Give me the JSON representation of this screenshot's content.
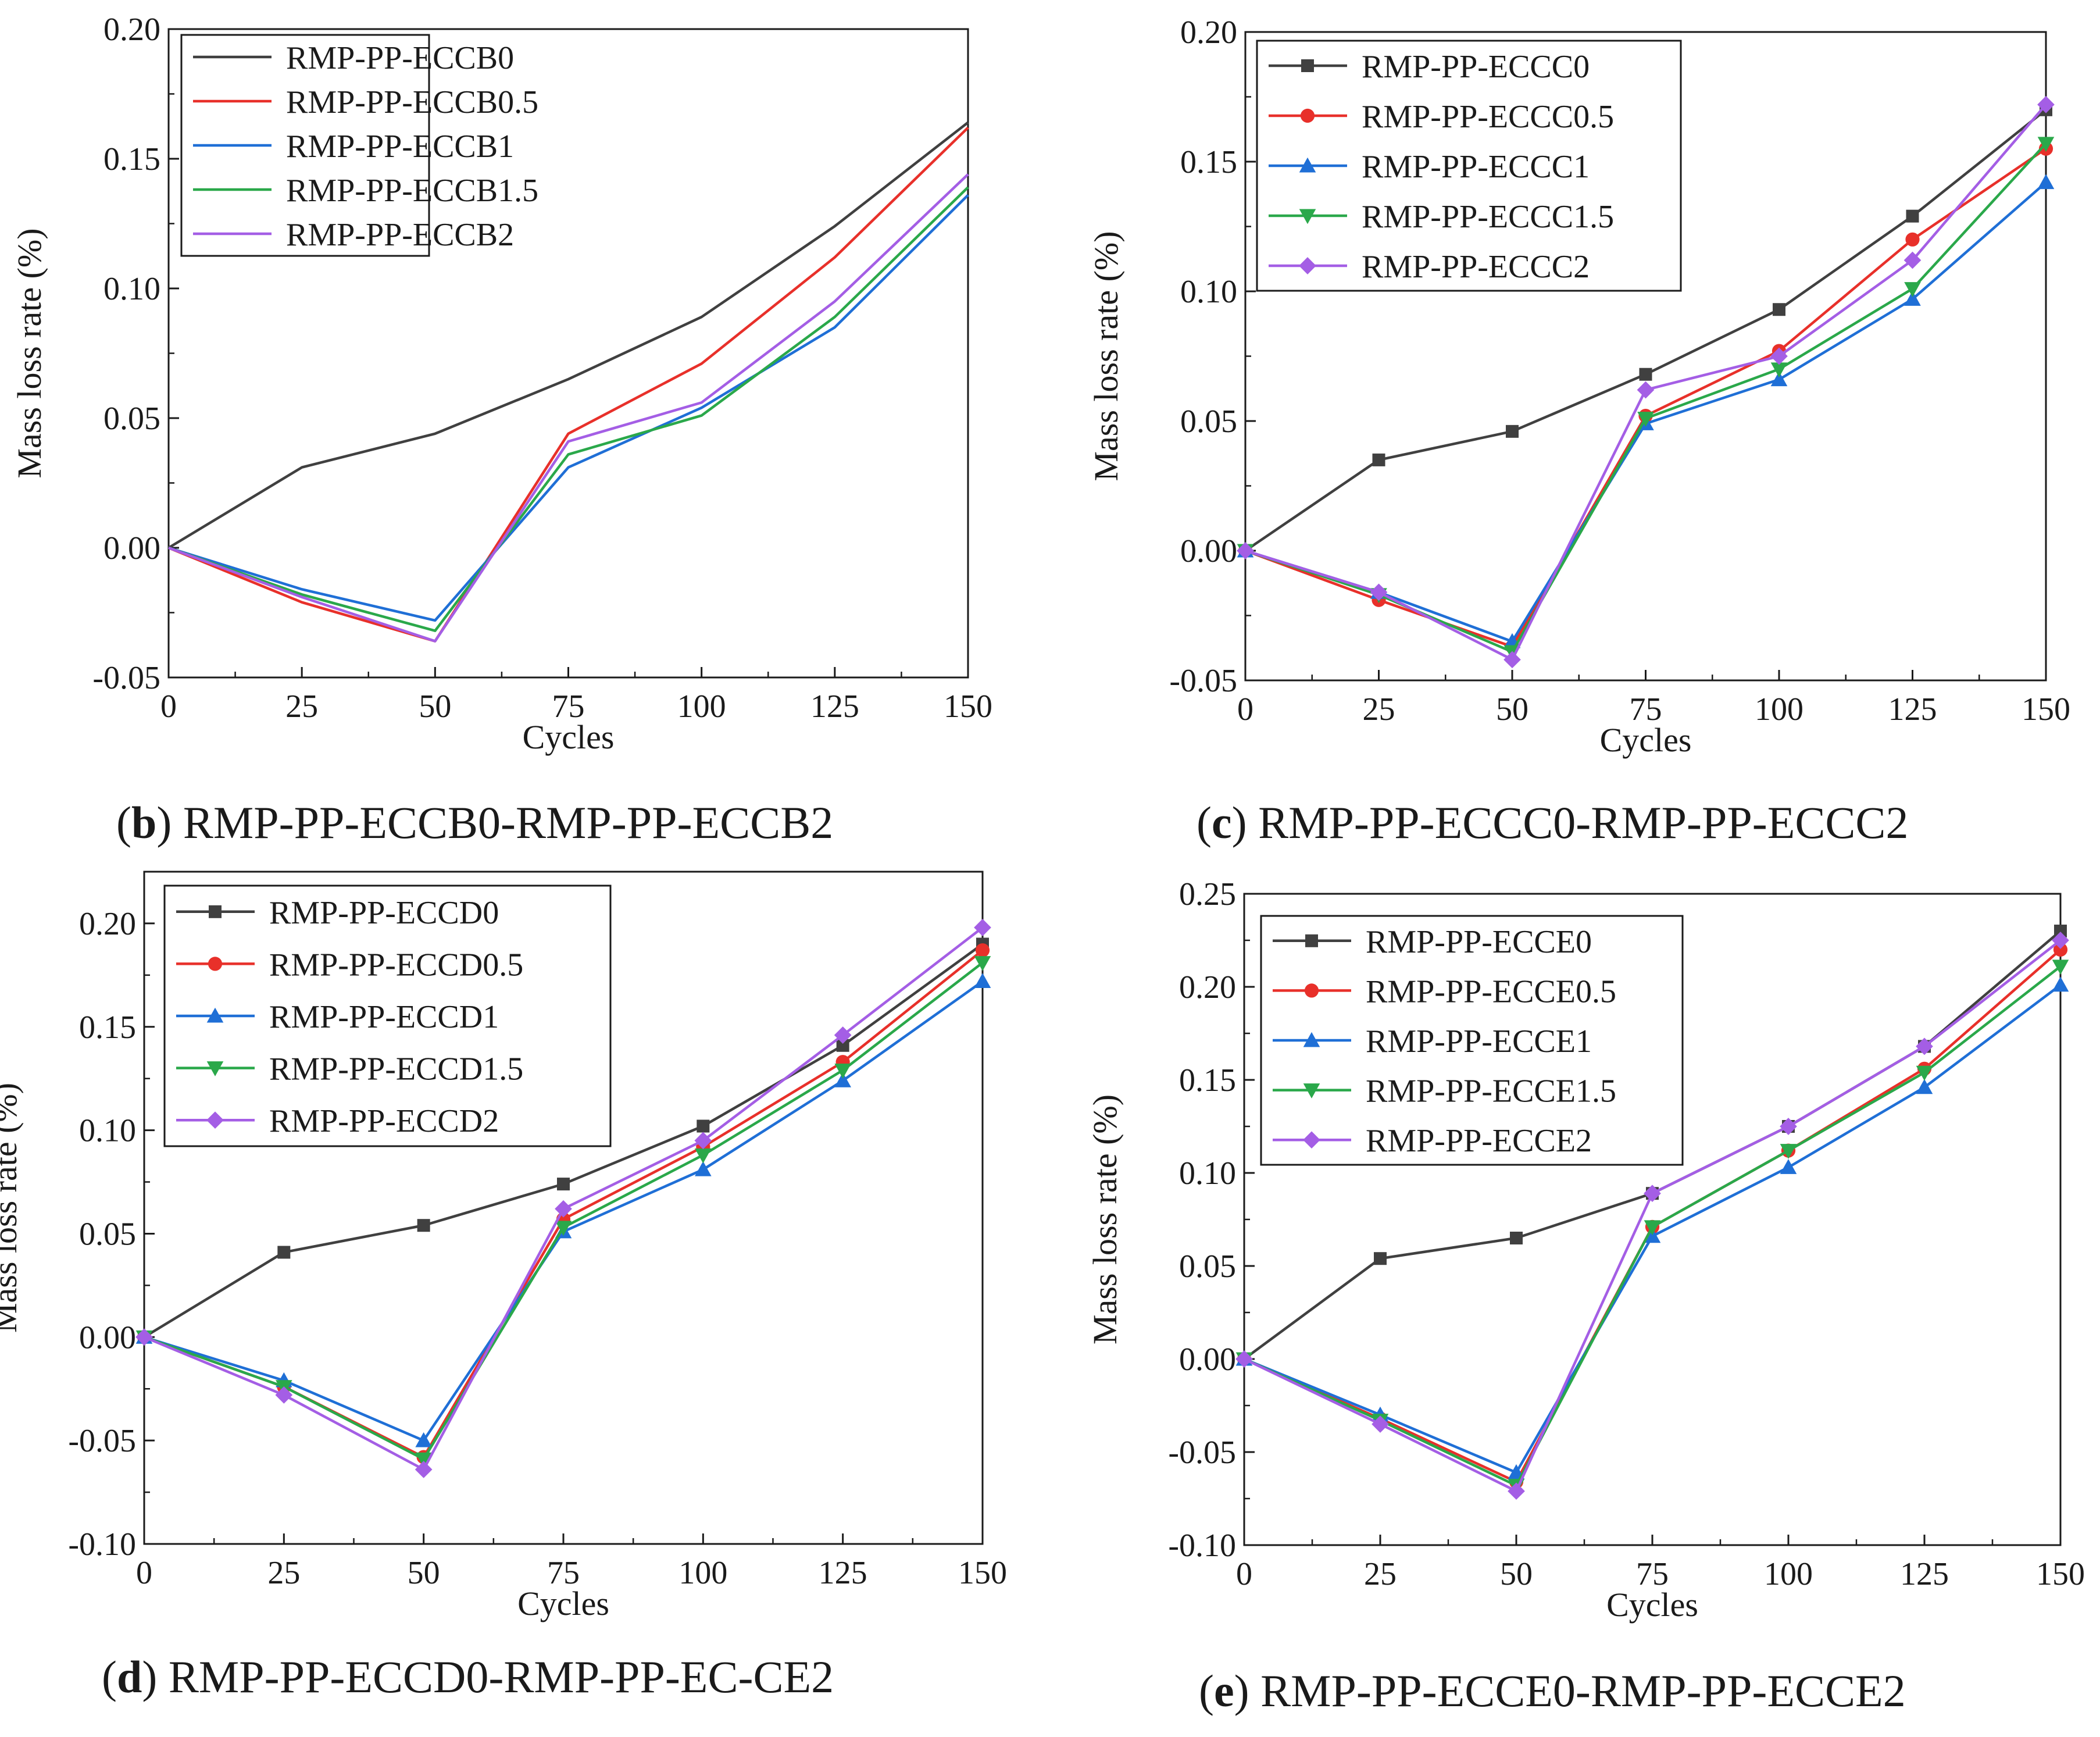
{
  "chart_data": [
    {
      "type": "line",
      "panel_letter": "b",
      "caption": "RMP-PP-ECCB0-RMP-PP-ECCB2",
      "xlabel": "Cycles",
      "ylabel": "Mass loss rate (%)",
      "x": [
        0,
        25,
        50,
        75,
        100,
        125,
        150
      ],
      "xticks": [
        "0",
        "25",
        "50",
        "75",
        "100",
        "125",
        "150"
      ],
      "xlim": [
        0,
        150
      ],
      "ylim": [
        -0.05,
        0.2
      ],
      "yticks": [
        "-0.05",
        "0.00",
        "0.05",
        "0.10",
        "0.15",
        "0.20"
      ],
      "markers": false,
      "series": [
        {
          "name": "RMP-PP-ECCB0",
          "color": "#404040",
          "marker": "none",
          "values": [
            0,
            0.031,
            0.044,
            0.065,
            0.089,
            0.124,
            0.164
          ]
        },
        {
          "name": "RMP-PP-ECCB0.5",
          "color": "#e8302a",
          "marker": "none",
          "values": [
            0,
            -0.021,
            -0.036,
            0.044,
            0.071,
            0.112,
            0.162
          ]
        },
        {
          "name": "RMP-PP-ECCB1",
          "color": "#1f6fd6",
          "marker": "none",
          "values": [
            0,
            -0.016,
            -0.028,
            0.031,
            0.054,
            0.085,
            0.136
          ]
        },
        {
          "name": "RMP-PP-ECCB1.5",
          "color": "#2aa84a",
          "marker": "none",
          "values": [
            0,
            -0.018,
            -0.032,
            0.036,
            0.051,
            0.089,
            0.139
          ]
        },
        {
          "name": "RMP-PP-ECCB2",
          "color": "#a45ee5",
          "marker": "none",
          "values": [
            0,
            -0.019,
            -0.036,
            0.041,
            0.056,
            0.095,
            0.144
          ]
        }
      ]
    },
    {
      "type": "line",
      "panel_letter": "c",
      "caption": "RMP-PP-ECCC0-RMP-PP-ECCC2",
      "xlabel": "Cycles",
      "ylabel": "Mass loss rate (%)",
      "x": [
        0,
        25,
        50,
        75,
        100,
        125,
        150
      ],
      "xticks": [
        "0",
        "25",
        "50",
        "75",
        "100",
        "125",
        "150"
      ],
      "xlim": [
        0,
        150
      ],
      "ylim": [
        -0.05,
        0.2
      ],
      "yticks": [
        "-0.05",
        "0.00",
        "0.05",
        "0.10",
        "0.15",
        "0.20"
      ],
      "markers": true,
      "series": [
        {
          "name": "RMP-PP-ECCC0",
          "color": "#404040",
          "marker": "square",
          "values": [
            0,
            0.035,
            0.046,
            0.068,
            0.093,
            0.129,
            0.17
          ]
        },
        {
          "name": "RMP-PP-ECCC0.5",
          "color": "#e8302a",
          "marker": "circle",
          "values": [
            0,
            -0.019,
            -0.037,
            0.052,
            0.077,
            0.12,
            0.155
          ]
        },
        {
          "name": "RMP-PP-ECCC1",
          "color": "#1f6fd6",
          "marker": "triangle-up",
          "values": [
            0,
            -0.016,
            -0.035,
            0.049,
            0.066,
            0.097,
            0.142
          ]
        },
        {
          "name": "RMP-PP-ECCC1.5",
          "color": "#2aa84a",
          "marker": "triangle-down",
          "values": [
            0,
            -0.017,
            -0.039,
            0.051,
            0.07,
            0.101,
            0.157
          ]
        },
        {
          "name": "RMP-PP-ECCC2",
          "color": "#a45ee5",
          "marker": "diamond",
          "values": [
            0,
            -0.016,
            -0.042,
            0.062,
            0.075,
            0.112,
            0.172
          ]
        }
      ]
    },
    {
      "type": "line",
      "panel_letter": "d",
      "caption": "RMP-PP-ECCD0-RMP-PP-EC-CE2",
      "xlabel": "Cycles",
      "ylabel": "Mass loss rate (%)",
      "x": [
        0,
        25,
        50,
        75,
        100,
        125,
        150
      ],
      "xticks": [
        "0",
        "25",
        "50",
        "75",
        "100",
        "125",
        "150"
      ],
      "xlim": [
        0,
        150
      ],
      "ylim": [
        -0.1,
        0.225
      ],
      "yticks": [
        "-0.10",
        "-0.05",
        "0.00",
        "0.05",
        "0.10",
        "0.15",
        "0.20"
      ],
      "markers": true,
      "series": [
        {
          "name": "RMP-PP-ECCD0",
          "color": "#404040",
          "marker": "square",
          "values": [
            0,
            0.041,
            0.054,
            0.074,
            0.102,
            0.141,
            0.19
          ]
        },
        {
          "name": "RMP-PP-ECCD0.5",
          "color": "#e8302a",
          "marker": "circle",
          "values": [
            0,
            -0.024,
            -0.058,
            0.057,
            0.092,
            0.133,
            0.187
          ]
        },
        {
          "name": "RMP-PP-ECCD1",
          "color": "#1f6fd6",
          "marker": "triangle-up",
          "values": [
            0,
            -0.021,
            -0.05,
            0.051,
            0.081,
            0.124,
            0.172
          ]
        },
        {
          "name": "RMP-PP-ECCD1.5",
          "color": "#2aa84a",
          "marker": "triangle-down",
          "values": [
            0,
            -0.024,
            -0.059,
            0.053,
            0.088,
            0.129,
            0.181
          ]
        },
        {
          "name": "RMP-PP-ECCD2",
          "color": "#a45ee5",
          "marker": "diamond",
          "values": [
            0,
            -0.028,
            -0.064,
            0.062,
            0.095,
            0.146,
            0.198
          ]
        }
      ]
    },
    {
      "type": "line",
      "panel_letter": "e",
      "caption": "RMP-PP-ECCE0-RMP-PP-ECCE2",
      "xlabel": "Cycles",
      "ylabel": "Mass loss rate (%)",
      "x": [
        0,
        25,
        50,
        75,
        100,
        125,
        150
      ],
      "xticks": [
        "0",
        "25",
        "50",
        "75",
        "100",
        "125",
        "150"
      ],
      "xlim": [
        0,
        150
      ],
      "ylim": [
        -0.1,
        0.25
      ],
      "yticks": [
        "-0.10",
        "-0.05",
        "0.00",
        "0.05",
        "0.10",
        "0.15",
        "0.20",
        "0.25"
      ],
      "markers": true,
      "series": [
        {
          "name": "RMP-PP-ECCE0",
          "color": "#404040",
          "marker": "square",
          "values": [
            0,
            0.054,
            0.065,
            0.089,
            0.125,
            0.168,
            0.23
          ]
        },
        {
          "name": "RMP-PP-ECCE0.5",
          "color": "#e8302a",
          "marker": "circle",
          "values": [
            0,
            -0.032,
            -0.066,
            0.071,
            0.112,
            0.156,
            0.22
          ]
        },
        {
          "name": "RMP-PP-ECCE1",
          "color": "#1f6fd6",
          "marker": "triangle-up",
          "values": [
            0,
            -0.03,
            -0.061,
            0.066,
            0.103,
            0.146,
            0.201
          ]
        },
        {
          "name": "RMP-PP-ECCE1.5",
          "color": "#2aa84a",
          "marker": "triangle-down",
          "values": [
            0,
            -0.033,
            -0.068,
            0.071,
            0.112,
            0.154,
            0.211
          ]
        },
        {
          "name": "RMP-PP-ECCE2",
          "color": "#a45ee5",
          "marker": "diamond",
          "values": [
            0,
            -0.035,
            -0.071,
            0.089,
            0.125,
            0.168,
            0.225
          ]
        }
      ]
    }
  ]
}
